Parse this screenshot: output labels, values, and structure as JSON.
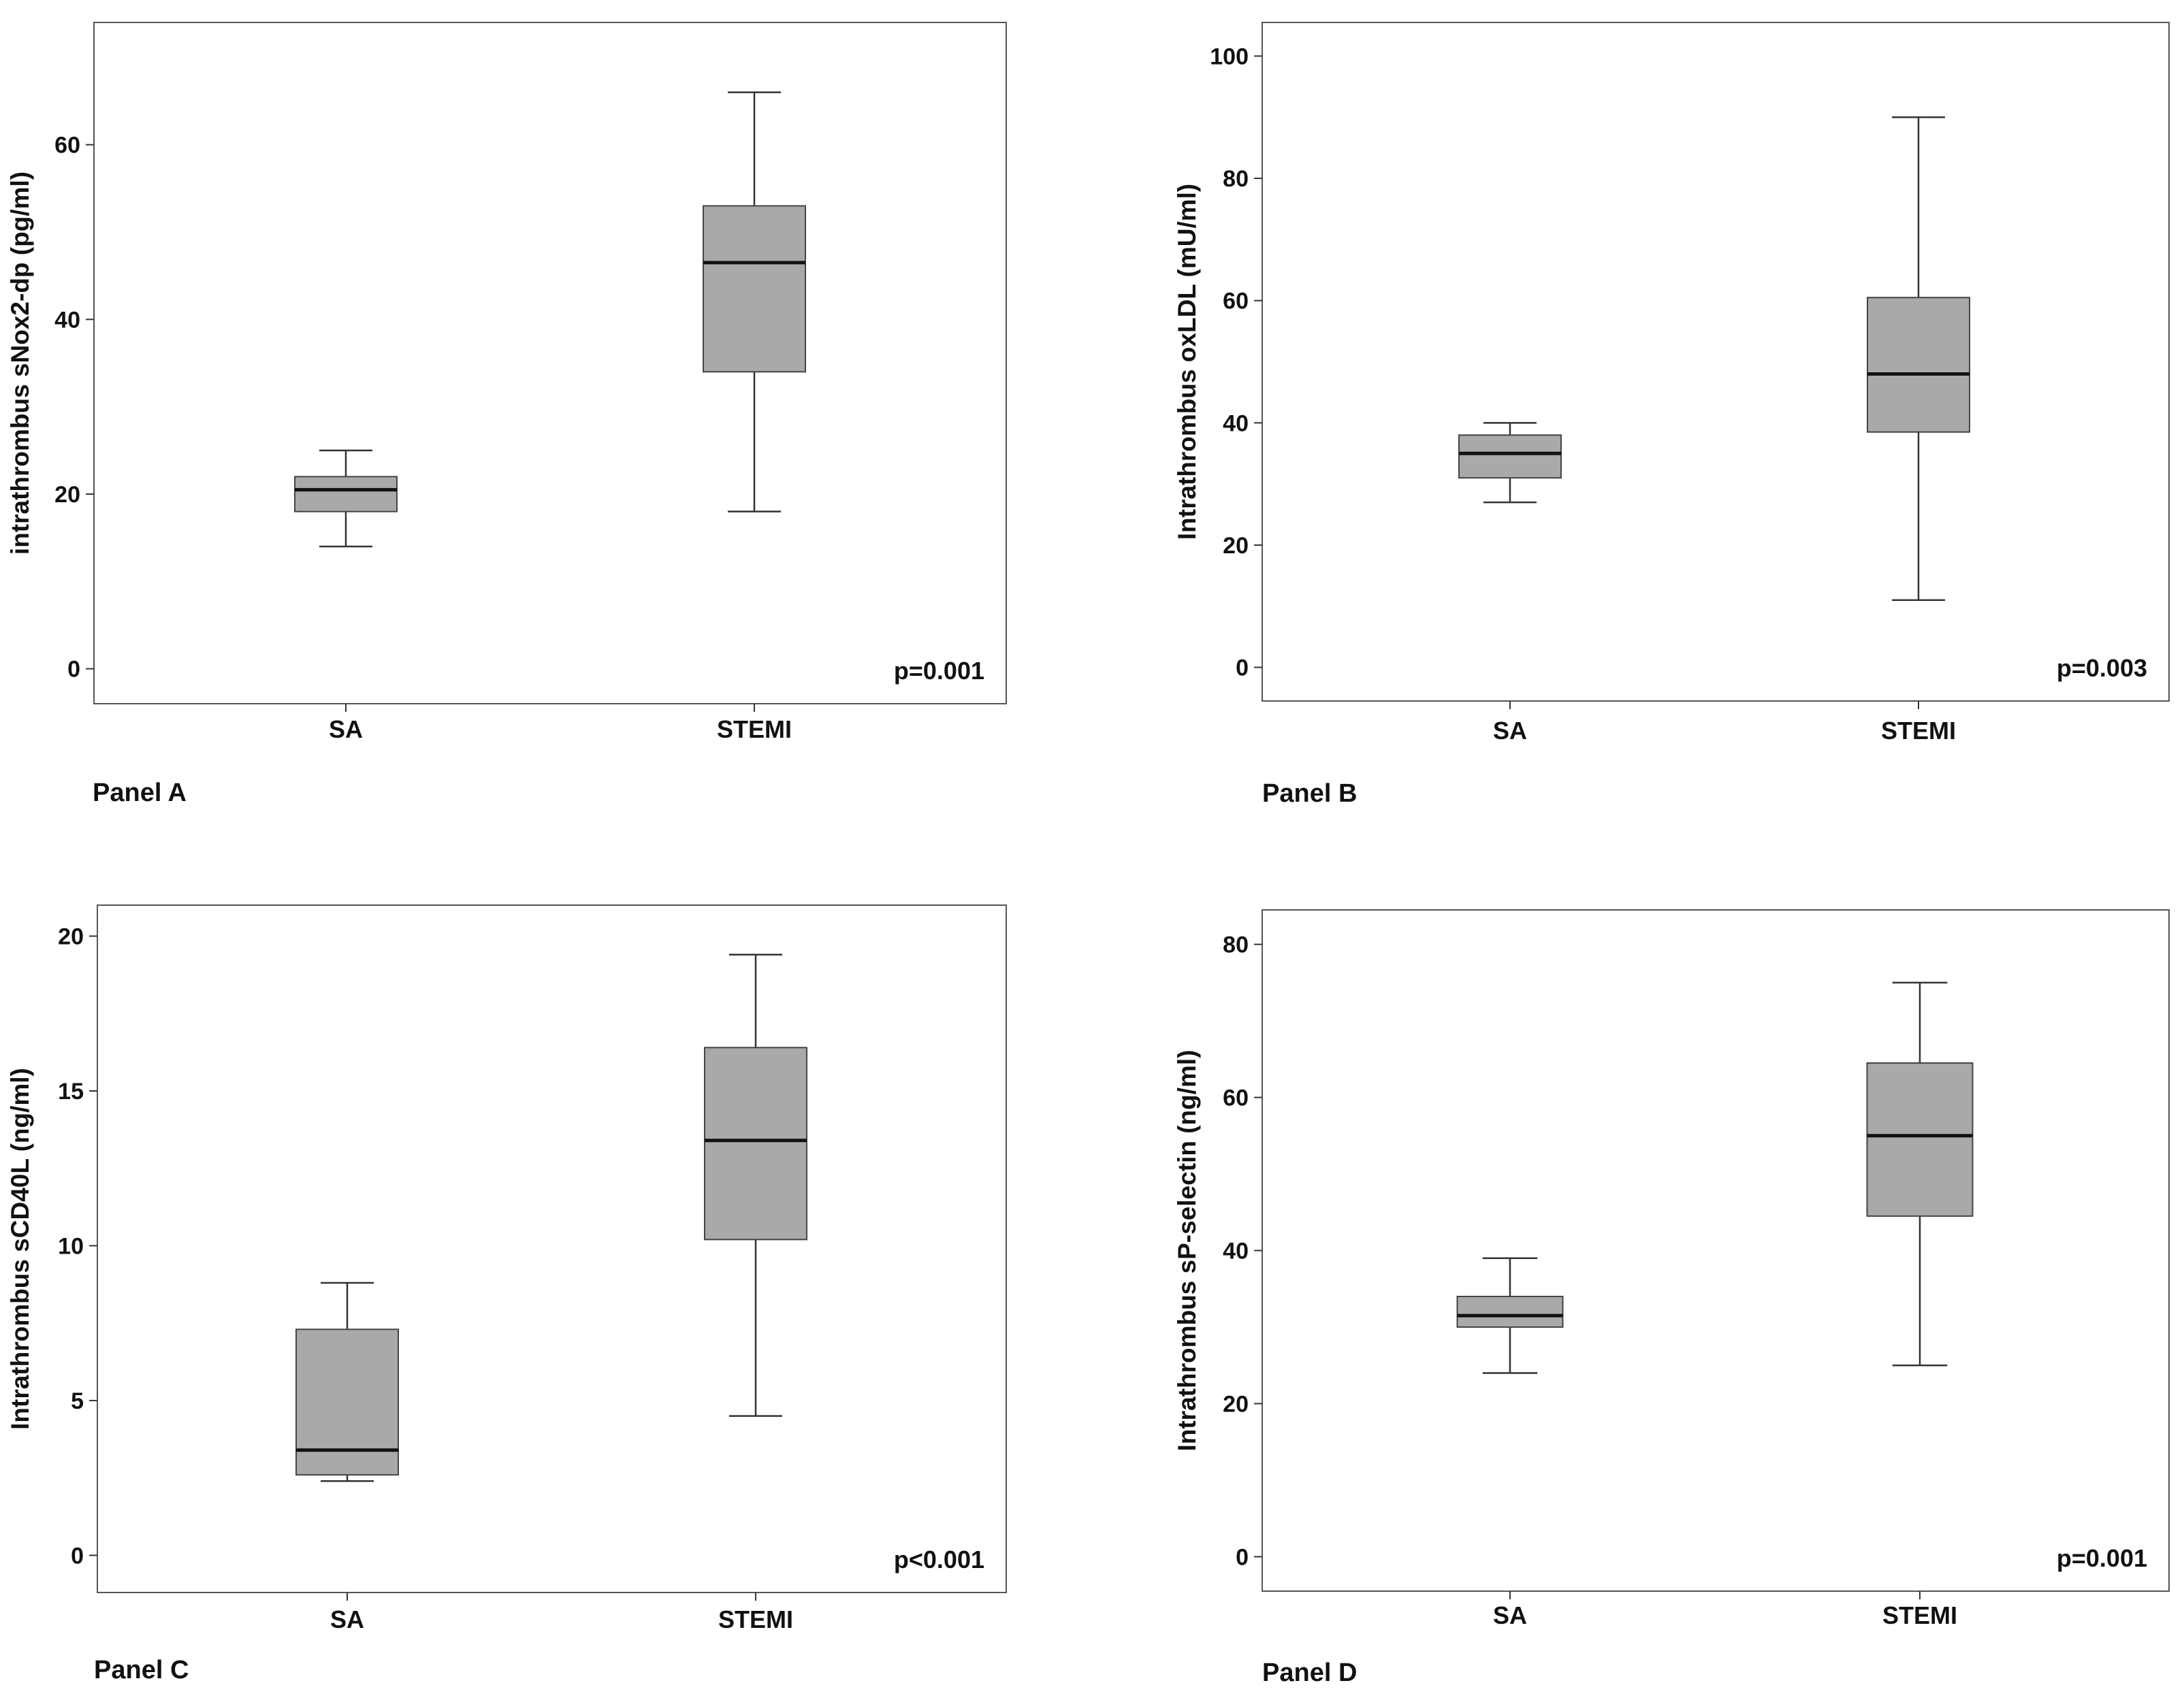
{
  "chart_data": [
    {
      "type": "boxplot",
      "panel_label": "Panel A",
      "ylabel": "intrathrombus sNox2-dp (pg/ml)",
      "categories": [
        "SA",
        "STEMI"
      ],
      "ylim": [
        -4,
        74
      ],
      "yticks": [
        0,
        20,
        40,
        60
      ],
      "ytick_labels": [
        "0",
        "20",
        "40",
        "60"
      ],
      "boxes": [
        {
          "name": "SA",
          "min": 14,
          "q1": 18,
          "median": 20.5,
          "q3": 22,
          "max": 25
        },
        {
          "name": "STEMI",
          "min": 18,
          "q1": 34,
          "median": 46.5,
          "q3": 53,
          "max": 66
        }
      ],
      "annotation": "p=0.001",
      "box_color": "#a9a9a9"
    },
    {
      "type": "boxplot",
      "panel_label": "Panel B",
      "ylabel": "Intrathrombus oxLDL (mU/ml)",
      "categories": [
        "SA",
        "STEMI"
      ],
      "ylim": [
        -5.5,
        105.5
      ],
      "yticks": [
        0,
        20,
        40,
        60,
        80,
        100
      ],
      "ytick_labels": [
        "0",
        "20",
        "40",
        "60",
        "80",
        "100"
      ],
      "boxes": [
        {
          "name": "SA",
          "min": 27,
          "q1": 31,
          "median": 35,
          "q3": 38,
          "max": 40
        },
        {
          "name": "STEMI",
          "min": 11,
          "q1": 38.5,
          "median": 48,
          "q3": 60.5,
          "max": 90
        }
      ],
      "annotation": "p=0.003",
      "box_color": "#a9a9a9"
    },
    {
      "type": "boxplot",
      "panel_label": "Panel C",
      "ylabel": "Intrathrombus sCD40L (ng/ml)",
      "categories": [
        "SA",
        "STEMI"
      ],
      "ylim": [
        -1.2,
        21
      ],
      "yticks": [
        0,
        5,
        10,
        15,
        20
      ],
      "ytick_labels": [
        "0",
        "5",
        "10",
        "15",
        "20"
      ],
      "boxes": [
        {
          "name": "SA",
          "min": 2.4,
          "q1": 2.6,
          "median": 3.4,
          "q3": 7.3,
          "max": 8.8
        },
        {
          "name": "STEMI",
          "min": 4.5,
          "q1": 10.2,
          "median": 13.4,
          "q3": 16.4,
          "max": 19.4
        }
      ],
      "annotation": "p<0.001",
      "box_color": "#a9a9a9"
    },
    {
      "type": "boxplot",
      "panel_label": "Panel D",
      "ylabel": "Intrathrombus sP-selectin (ng/ml)",
      "categories": [
        "SA",
        "STEMI"
      ],
      "ylim": [
        -4.5,
        84.5
      ],
      "yticks": [
        0,
        20,
        40,
        60,
        80
      ],
      "ytick_labels": [
        "0",
        "20",
        "40",
        "60",
        "80"
      ],
      "boxes": [
        {
          "name": "SA",
          "min": 24,
          "q1": 30,
          "median": 31.5,
          "q3": 34,
          "max": 39
        },
        {
          "name": "STEMI",
          "min": 25,
          "q1": 44.5,
          "median": 55,
          "q3": 64.5,
          "max": 75
        }
      ],
      "annotation": "p=0.001",
      "box_color": "#a9a9a9"
    }
  ]
}
